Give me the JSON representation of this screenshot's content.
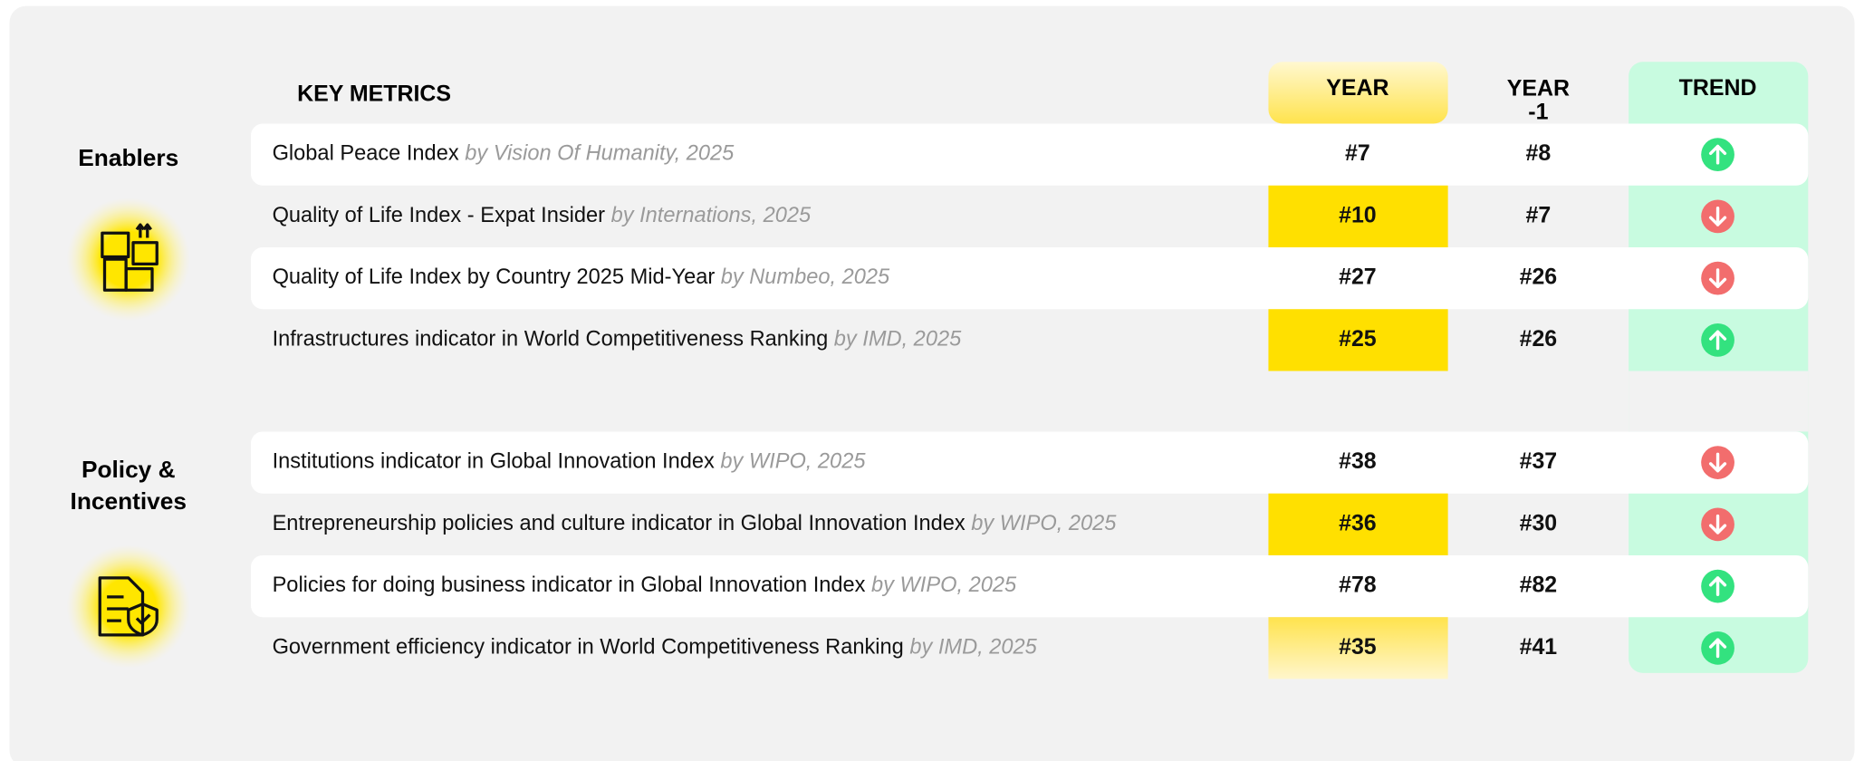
{
  "header": {
    "key_metrics": "KEY METRICS",
    "year": "YEAR",
    "year_prev": [
      "YEAR",
      "-1"
    ],
    "trend": "TREND"
  },
  "sections": [
    {
      "label": [
        "Enablers"
      ],
      "rows": [
        {
          "metric": "Global Peace Index",
          "source": "by Vision Of Humanity, 2025",
          "year": "#7",
          "year_prev": "#8",
          "trend": "up"
        },
        {
          "metric": "Quality of Life Index - Expat Insider",
          "source": "by Internations, 2025",
          "year": "#10",
          "year_prev": "#7",
          "trend": "down"
        },
        {
          "metric": "Quality of Life Index by Country 2025 Mid-Year",
          "source": "by Numbeo, 2025",
          "year": "#27",
          "year_prev": "#26",
          "trend": "down"
        },
        {
          "metric": "Infrastructures indicator in World Competitiveness Ranking",
          "source": "by IMD, 2025",
          "year": "#25",
          "year_prev": "#26",
          "trend": "up"
        }
      ]
    },
    {
      "label": [
        "Policy &",
        "Incentives"
      ],
      "rows": [
        {
          "metric": "Institutions indicator in Global Innovation Index",
          "source": "by WIPO, 2025",
          "year": "#38",
          "year_prev": "#37",
          "trend": "down"
        },
        {
          "metric": "Entrepreneurship policies and culture indicator in Global Innovation Index",
          "source": "by WIPO, 2025",
          "year": "#36",
          "year_prev": "#30",
          "trend": "down"
        },
        {
          "metric": "Policies for doing business indicator in Global Innovation Index",
          "source": "by WIPO, 2025",
          "year": "#78",
          "year_prev": "#82",
          "trend": "up"
        },
        {
          "metric": "Government efficiency indicator in World Competitiveness Ranking",
          "source": "by IMD, 2025",
          "year": "#35",
          "year_prev": "#41",
          "trend": "up"
        }
      ]
    }
  ]
}
